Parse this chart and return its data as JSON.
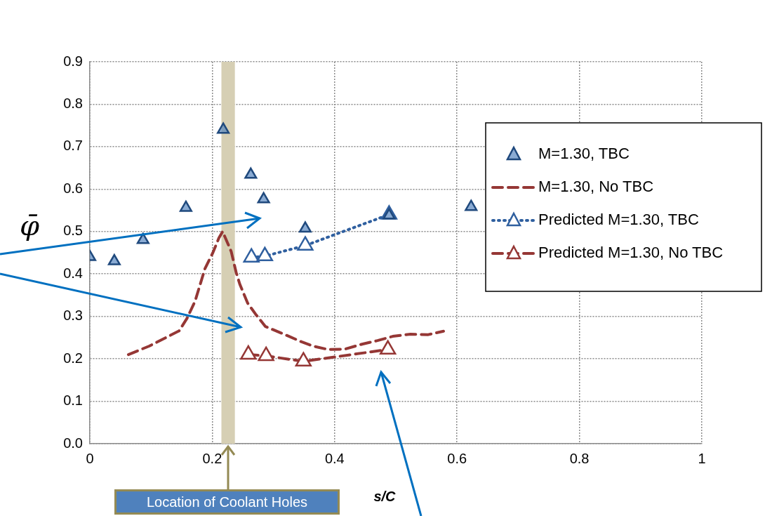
{
  "chart_data": {
    "type": "scatter",
    "xlabel": "s/C",
    "ylabel": "φ̄",
    "xlim": [
      0,
      1
    ],
    "xticks": [
      0,
      0.2,
      0.4,
      0.6,
      0.8,
      1
    ],
    "ylim": [
      0,
      0.9
    ],
    "yticks": [
      {
        "value": 0,
        "label": "0.0"
      },
      0.1,
      0.2,
      0.3,
      0.4,
      0.5,
      0.6,
      0.7,
      0.8,
      0.9
    ],
    "grid": true,
    "legend": "right",
    "bands": [
      {
        "axis": "x",
        "from": 0.215,
        "to": 0.237,
        "label": "Location of Coolant Holes",
        "color": "#d6cfb4"
      }
    ],
    "series": [
      {
        "name": "M=1.30, TBC",
        "marker": "triangle",
        "color": "#4f81bd",
        "x": [
          0,
          0.04,
          0.087,
          0.157,
          0.218,
          0.263,
          0.284,
          0.352,
          0.489,
          0.623
        ],
        "values": [
          0.44,
          0.43,
          0.48,
          0.556,
          0.74,
          0.634,
          0.576,
          0.507,
          0.538,
          0.558
        ]
      },
      {
        "name": "M=1.30, No TBC",
        "type": "line",
        "marker": "none",
        "line_style": "dashed",
        "color": "#953735",
        "x": [
          0.063,
          0.097,
          0.146,
          0.159,
          0.172,
          0.188,
          0.201,
          0.211,
          0.217,
          0.231,
          0.239,
          0.245,
          0.258,
          0.271,
          0.287,
          0.314,
          0.346,
          0.365,
          0.389,
          0.417,
          0.446,
          0.47,
          0.495,
          0.524,
          0.553,
          0.578
        ],
        "values": [
          0.21,
          0.23,
          0.266,
          0.296,
          0.336,
          0.412,
          0.45,
          0.485,
          0.5,
          0.453,
          0.404,
          0.376,
          0.331,
          0.305,
          0.276,
          0.26,
          0.24,
          0.23,
          0.222,
          0.223,
          0.235,
          0.243,
          0.253,
          0.258,
          0.257,
          0.265
        ]
      },
      {
        "name": "Predicted M=1.30, TBC",
        "type": "line",
        "marker": "triangle",
        "line_style": "dotted",
        "color": "#2f5f9f",
        "x": [
          0.264,
          0.286,
          0.352,
          0.489
        ],
        "values": [
          0.439,
          0.442,
          0.467,
          0.54
        ]
      },
      {
        "name": "Predicted M=1.30, No TBC",
        "type": "line",
        "marker": "triangle",
        "line_style": "dashed",
        "color": "#953735",
        "x": [
          0.259,
          0.288,
          0.349,
          0.487
        ],
        "values": [
          0.21,
          0.207,
          0.194,
          0.222
        ]
      }
    ]
  }
}
